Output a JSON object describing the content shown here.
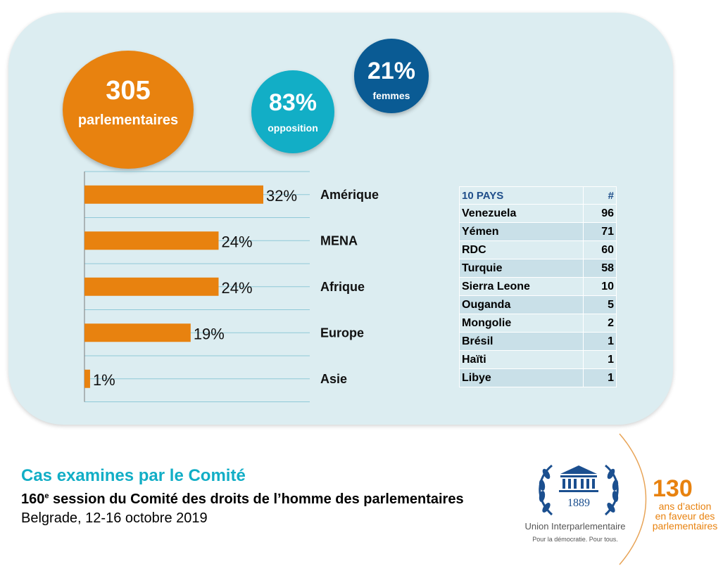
{
  "stats": {
    "total": {
      "value": "305",
      "label": "parlementaires"
    },
    "opposition": {
      "value": "83%",
      "label": "opposition"
    },
    "women": {
      "value": "21%",
      "label": "femmes"
    }
  },
  "chart_data": {
    "type": "bar",
    "orientation": "horizontal",
    "categories": [
      "Amérique",
      "MENA",
      "Afrique",
      "Europe",
      "Asie"
    ],
    "values": [
      32,
      24,
      24,
      19,
      1
    ],
    "value_labels": [
      "32%",
      "24%",
      "24%",
      "19%",
      "1%"
    ],
    "unit": "%",
    "bar_color": "#e8820f",
    "grid": true
  },
  "table": {
    "header": {
      "label": "10 PAYS",
      "count": "#"
    },
    "rows": [
      {
        "country": "Venezuela",
        "count": "96"
      },
      {
        "country": "Yémen",
        "count": "71"
      },
      {
        "country": "RDC",
        "count": "60"
      },
      {
        "country": "Turquie",
        "count": "58"
      },
      {
        "country": "Sierra Leone",
        "count": "10"
      },
      {
        "country": "Ouganda",
        "count": "5"
      },
      {
        "country": "Mongolie",
        "count": "2"
      },
      {
        "country": "Brésil",
        "count": "1"
      },
      {
        "country": "Haïti",
        "count": "1"
      },
      {
        "country": "Libye",
        "count": "1"
      }
    ],
    "row_colors": [
      "#dcedf1",
      "#c9e0e8"
    ]
  },
  "footer": {
    "title": "Cas examines par le Comité",
    "subtitle_number": "160",
    "subtitle_sup": "e",
    "subtitle_rest": " session du Comité des droits de l’homme des parlementaires",
    "dateline": "Belgrade, 12-16 octobre 2019"
  },
  "logo": {
    "year": "1889",
    "org_name": "Union Interparlementaire",
    "slogan": "Pour la démocratie. Pour tous."
  },
  "anniversary": {
    "number": "130",
    "line1": "ans d’action",
    "line2": "en faveur des",
    "line3": "parlementaires"
  },
  "colors": {
    "accent_orange": "#e8820f",
    "accent_teal": "#12aec6",
    "accent_navy": "#0a5b94",
    "panel": "#dcedf1"
  }
}
